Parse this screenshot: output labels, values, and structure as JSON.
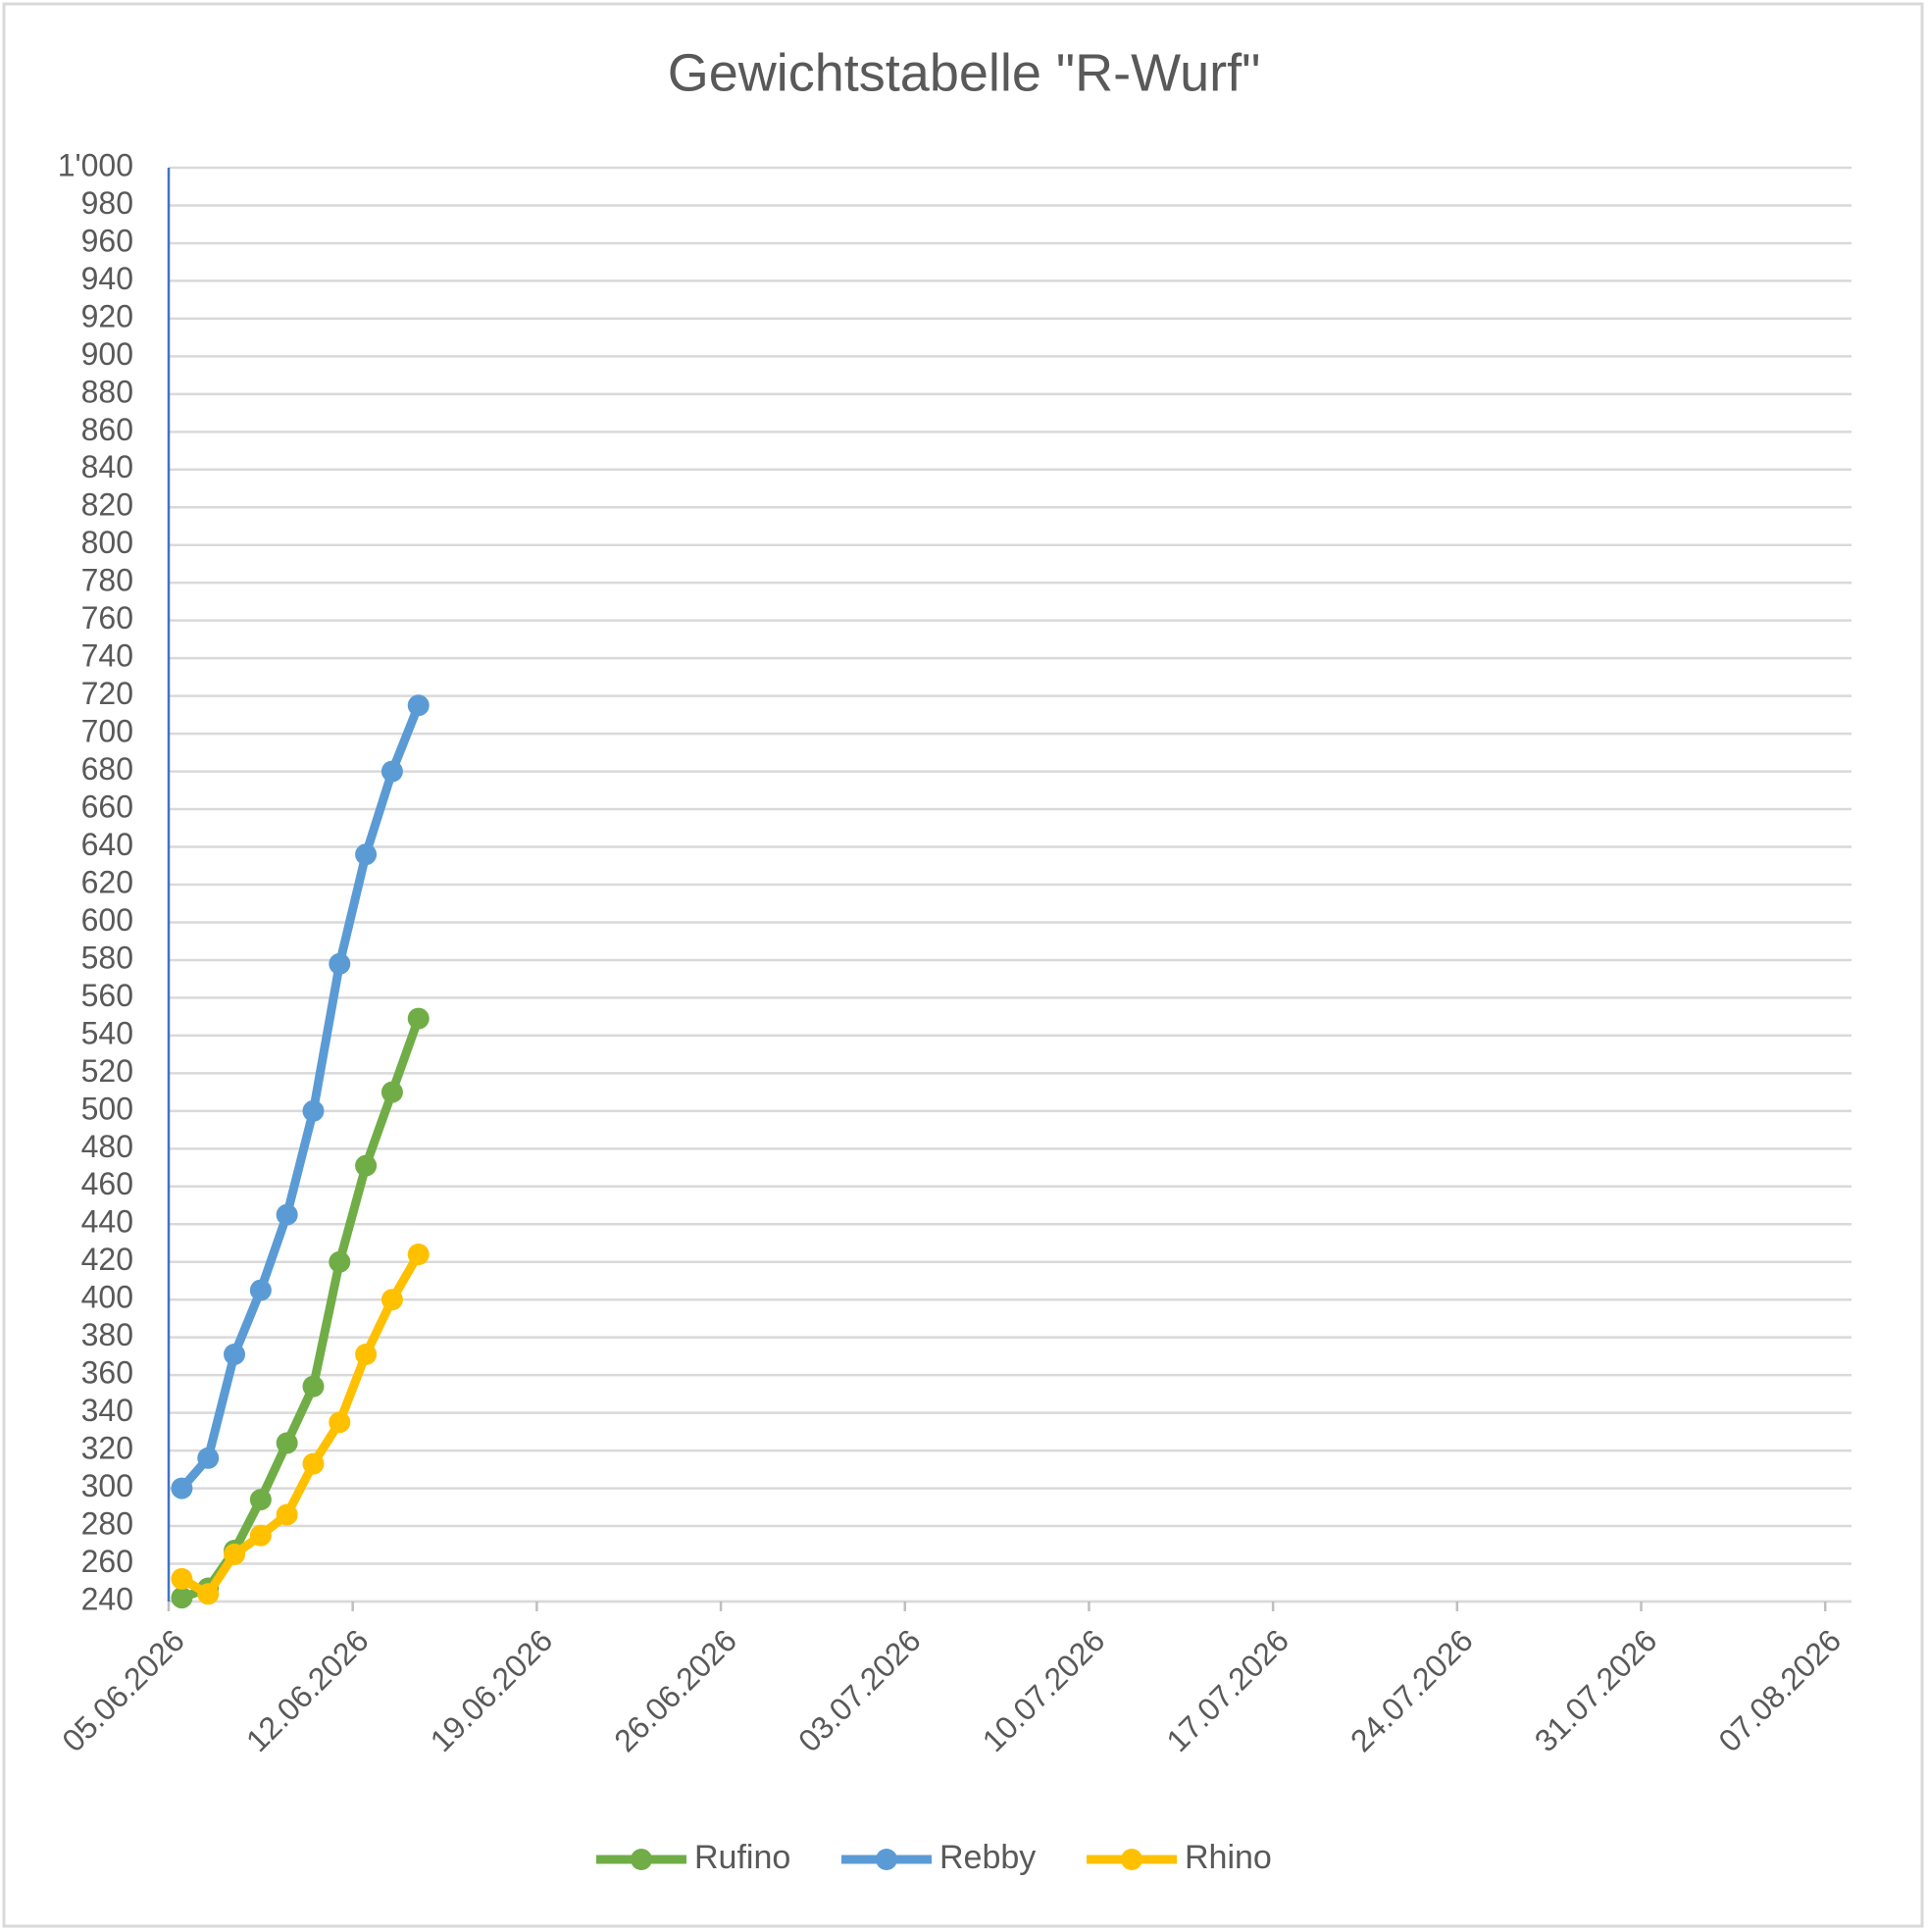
{
  "chart_data": {
    "type": "line",
    "title": "Gewichtstabelle \"R-Wurf\"",
    "x": [
      "05.06.2026",
      "06.06.2026",
      "07.06.2026",
      "08.06.2026",
      "09.06.2026",
      "10.06.2026",
      "11.06.2026",
      "12.06.2026",
      "13.06.2026",
      "14.06.2026"
    ],
    "series": [
      {
        "name": "Rufino",
        "color": "#70ad47",
        "values": [
          242,
          247,
          267,
          294,
          324,
          354,
          420,
          471,
          510,
          549
        ]
      },
      {
        "name": "Rebby",
        "color": "#5b9bd5",
        "values": [
          300,
          316,
          371,
          405,
          445,
          500,
          578,
          636,
          680,
          715
        ]
      },
      {
        "name": "Rhino",
        "color": "#ffc000",
        "values": [
          252,
          244,
          265,
          275,
          286,
          313,
          335,
          371,
          400,
          424
        ]
      }
    ],
    "xlim": [
      "05.06.2026",
      "08.08.2026"
    ],
    "xticks": [
      "05.06.2026",
      "12.06.2026",
      "19.06.2026",
      "26.06.2026",
      "03.07.2026",
      "10.07.2026",
      "17.07.2026",
      "24.07.2026",
      "31.07.2026",
      "07.08.2026"
    ],
    "ylim": [
      240,
      1000
    ],
    "yticks": [
      240,
      260,
      280,
      300,
      320,
      340,
      360,
      380,
      400,
      420,
      440,
      460,
      480,
      500,
      520,
      540,
      560,
      580,
      600,
      620,
      640,
      660,
      680,
      700,
      720,
      740,
      760,
      780,
      800,
      820,
      840,
      860,
      880,
      900,
      920,
      940,
      960,
      980,
      {
        "value": 1000,
        "label": "1'000"
      }
    ],
    "grid": true,
    "legend": "bottom"
  }
}
